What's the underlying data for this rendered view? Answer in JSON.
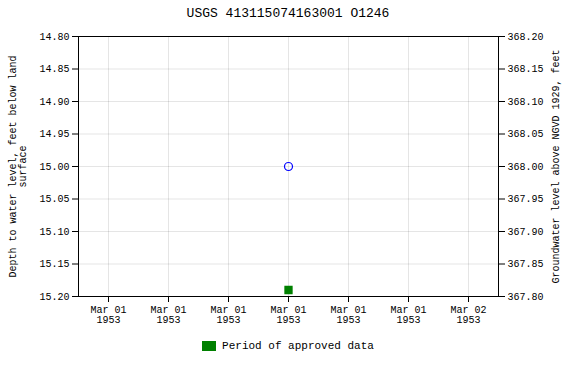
{
  "chart_data": {
    "type": "scatter",
    "title": "USGS 413115074163001 O1246",
    "ylabel": "Depth to water level, feet below land\nsurface",
    "y2label": "Groundwater level above NGVD 1929, feet",
    "categories": [
      "Mar 01\n1953",
      "Mar 01\n1953",
      "Mar 01\n1953",
      "Mar 01\n1953",
      "Mar 01\n1953",
      "Mar 01\n1953",
      "Mar 02\n1953"
    ],
    "series": [
      {
        "color": "blue",
        "marker": "open_circle",
        "values": [
          null,
          null,
          null,
          15.0,
          null,
          null,
          null
        ]
      },
      {
        "name": "Period of approved data",
        "color": "#008000",
        "marker": "square",
        "values": [
          null,
          null,
          null,
          15.19,
          null,
          null,
          null
        ]
      }
    ],
    "ylim": [
      15.2,
      14.8
    ],
    "yticks": [
      {
        "value": 14.8,
        "label": "14.80"
      },
      14.85,
      {
        "value": 14.9,
        "label": "14.90"
      },
      14.95,
      {
        "value": 15.0,
        "label": "15.00"
      },
      15.05,
      {
        "value": 15.1,
        "label": "15.10"
      },
      15.15,
      {
        "value": 15.2,
        "label": "15.20"
      }
    ],
    "y2lim": [
      367.8,
      368.2
    ],
    "y2ticks": [
      {
        "value": 368.2,
        "label": "368.20"
      },
      368.15,
      {
        "value": 368.1,
        "label": "368.10"
      },
      368.05,
      {
        "value": 368.0,
        "label": "368.00"
      },
      367.95,
      {
        "value": 367.9,
        "label": "367.90"
      },
      367.85,
      {
        "value": 367.8,
        "label": "367.80"
      }
    ],
    "grid": true,
    "legend": "bottom"
  }
}
